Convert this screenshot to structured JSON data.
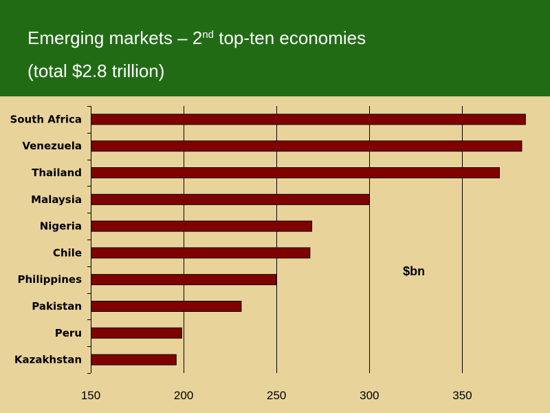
{
  "slide": {
    "title_pre": "Emerging markets – 2",
    "title_sup": "nd",
    "title_post": " top-ten economies",
    "subtitle": "(total $2.8 trillion)"
  },
  "colors": {
    "header_bg": "#226b15",
    "slide_bg": "#e8d39b",
    "bar_fill": "#800000"
  },
  "chart_data": {
    "type": "bar",
    "orientation": "horizontal",
    "categories": [
      "South Africa",
      "Venezuela",
      "Thailand",
      "Malaysia",
      "Nigeria",
      "Chile",
      "Philippines",
      "Pakistan",
      "Peru",
      "Kazakhstan"
    ],
    "values": [
      384,
      382,
      370,
      300,
      269,
      268,
      250,
      231,
      199,
      196
    ],
    "unit_label": "$bn",
    "xlim": [
      150,
      385
    ],
    "xticks": [
      150,
      200,
      250,
      300,
      350
    ],
    "grid": true
  }
}
